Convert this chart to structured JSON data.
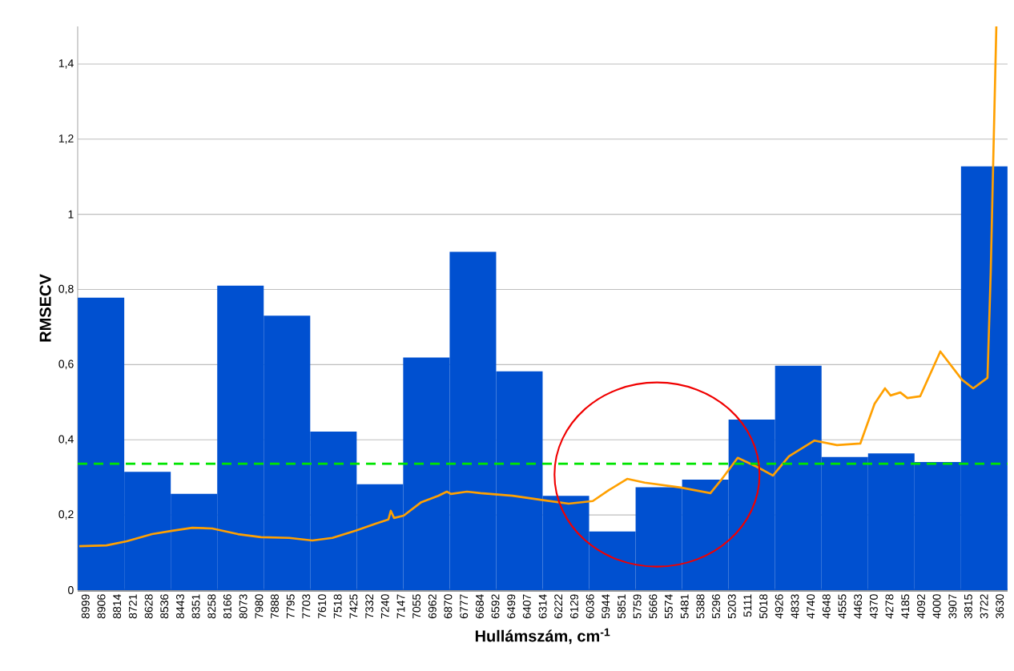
{
  "chart_data": {
    "type": "bar",
    "xlabel": "Hullámszám, cm$^{-1}$",
    "ylabel": "RMSECV",
    "xlim": [
      9045,
      3584
    ],
    "xticks": [
      8999,
      8906,
      8814,
      8721,
      8628,
      8536,
      8443,
      8351,
      8258,
      8166,
      8073,
      7980,
      7888,
      7795,
      7703,
      7610,
      7518,
      7425,
      7332,
      7240,
      7147,
      7055,
      6962,
      6870,
      6777,
      6684,
      6592,
      6499,
      6407,
      6314,
      6222,
      6129,
      6036,
      5944,
      5851,
      5759,
      5666,
      5574,
      5481,
      5388,
      5296,
      5203,
      5111,
      5018,
      4926,
      4833,
      4740,
      4648,
      4555,
      4463,
      4370,
      4278,
      4185,
      4092,
      4000,
      3907,
      3815,
      3722,
      3630
    ],
    "ylim": [
      0,
      1.5
    ],
    "yticks": [
      0,
      {
        "value": 0.2,
        "label": "0,2"
      },
      {
        "value": 0.4,
        "label": "0,4"
      },
      {
        "value": 0.6,
        "label": "0,6"
      },
      {
        "value": 0.8,
        "label": "0,8"
      },
      1,
      {
        "value": 1.2,
        "label": "1,2"
      },
      {
        "value": 1.4,
        "label": "1,4"
      }
    ],
    "grid": "y",
    "ref_lines": [
      {
        "axis": "y",
        "value": 0.336,
        "color": "#00e400",
        "line_style": "dashed"
      }
    ],
    "series": [
      {
        "color": "#0050d0",
        "x": [
          8908,
          8635,
          8362,
          8089,
          7816,
          7543,
          7270,
          6997,
          6724,
          6451,
          6178,
          5905,
          5632,
          5359,
          5086,
          4813,
          4540,
          4267,
          3994,
          3721
        ],
        "values": [
          0.778,
          0.315,
          0.256,
          0.81,
          0.73,
          0.422,
          0.282,
          0.619,
          0.9,
          0.582,
          0.251,
          0.156,
          0.274,
          0.294,
          0.454,
          0.597,
          0.354,
          0.364,
          0.341,
          1.128
        ]
      },
      {
        "type": "line",
        "color": "#ffa000",
        "x": [
          9036,
          8876,
          8758,
          8608,
          8490,
          8372,
          8255,
          8104,
          7968,
          7803,
          7667,
          7549,
          7413,
          7295,
          7220,
          7206,
          7187,
          7131,
          7027,
          6928,
          6877,
          6853,
          6759,
          6679,
          6491,
          6303,
          6162,
          6020,
          5926,
          5818,
          5715,
          5503,
          5329,
          5268,
          5169,
          5056,
          4962,
          4868,
          4718,
          4586,
          4449,
          4365,
          4304,
          4271,
          4214,
          4172,
          4097,
          3979,
          3852,
          3786,
          3702,
          3683,
          3669,
          3650
        ],
        "values": [
          0.117,
          0.119,
          0.13,
          0.149,
          0.158,
          0.166,
          0.164,
          0.149,
          0.141,
          0.139,
          0.132,
          0.139,
          0.158,
          0.177,
          0.188,
          0.211,
          0.192,
          0.198,
          0.234,
          0.251,
          0.262,
          0.256,
          0.262,
          0.258,
          0.251,
          0.239,
          0.23,
          0.237,
          0.266,
          0.296,
          0.286,
          0.273,
          0.258,
          0.292,
          0.352,
          0.328,
          0.305,
          0.356,
          0.398,
          0.386,
          0.39,
          0.496,
          0.537,
          0.518,
          0.526,
          0.511,
          0.516,
          0.635,
          0.56,
          0.537,
          0.565,
          0.846,
          1.127,
          1.5
        ]
      }
    ]
  }
}
